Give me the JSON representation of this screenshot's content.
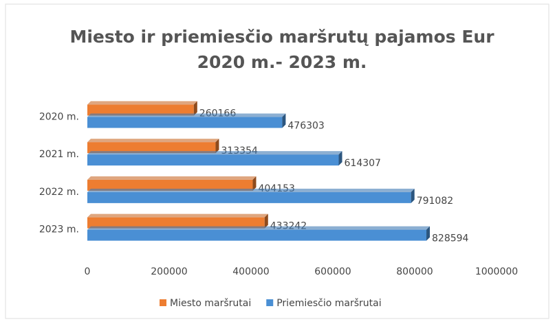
{
  "chart_data": {
    "type": "bar",
    "orientation": "horizontal",
    "title": [
      "Miesto ir priemiesčio maršrutų pajamos Eur",
      "2020 m.- 2023 m."
    ],
    "categories": [
      "2020 m.",
      "2021 m.",
      "2022 m.",
      "2023 m."
    ],
    "series": [
      {
        "name": "Miesto maršrutai",
        "color": "#ed7d31",
        "values": [
          260166,
          313354,
          404153,
          433242
        ]
      },
      {
        "name": "Priemiesčio maršrutai",
        "color": "#4a8fd4",
        "values": [
          476303,
          614307,
          791082,
          828594
        ]
      }
    ],
    "xlim": [
      0,
      1000000
    ],
    "xticks": [
      0,
      200000,
      400000,
      600000,
      800000,
      1000000
    ],
    "grid": false,
    "legend": "bottom",
    "data_labels": true
  }
}
